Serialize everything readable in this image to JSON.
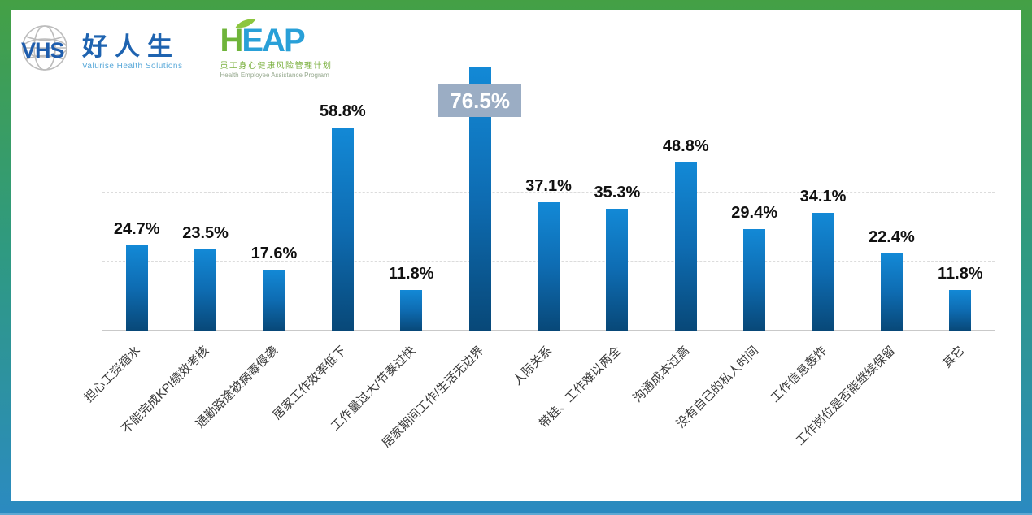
{
  "frame": {
    "gradient_top": "#44a045",
    "gradient_mid": "#2f9a80",
    "gradient_bottom": "#2b8ac1"
  },
  "logos": {
    "vhs": {
      "acronym": "VHS",
      "name_cn": "好人生",
      "tagline": "Valurise Health Solutions",
      "brand_blue": "#1e63b0",
      "light_blue": "#58a8d9"
    },
    "heap": {
      "h": "H",
      "eap": "EAP",
      "subtitle_cn": "员工身心健康风险管理计划",
      "subtitle_en": "Health Employee Assistance Program",
      "green": "#6fb43a",
      "blue": "#29a0d8"
    }
  },
  "chart_data": {
    "type": "bar",
    "title": "",
    "xlabel": "",
    "ylabel": "",
    "categories": [
      "担心工资缩水",
      "不能完成KPI绩效考核",
      "通勤路途被病毒侵袭",
      "居家工作效率低下",
      "工作量过大/节奏过快",
      "居家期间工作/生活无边界",
      "人际关系",
      "带娃、工作难以两全",
      "沟通成本过高",
      "没有自己的私人时间",
      "工作信息轰炸",
      "工作岗位是否能继续保留",
      "其它"
    ],
    "values": [
      24.7,
      23.5,
      17.6,
      58.8,
      11.8,
      76.5,
      37.1,
      35.3,
      48.8,
      29.4,
      34.1,
      22.4,
      11.8
    ],
    "labels": [
      "24.7%",
      "23.5%",
      "17.6%",
      "58.8%",
      "11.8%",
      "76.5%",
      "37.1%",
      "35.3%",
      "48.8%",
      "29.4%",
      "34.1%",
      "22.4%",
      "11.8%"
    ],
    "highlight_index": 5,
    "ylim": [
      0,
      80
    ],
    "gridlines_percent": [
      10,
      20,
      30,
      40,
      50,
      60,
      70,
      80
    ],
    "grid": true,
    "legend": false,
    "bar_color_top": "#1389d6",
    "bar_color_bottom": "#084878",
    "highlight_box_color": "#9badc4",
    "value_label_color": "#111111",
    "axis_label_color": "#3a3a3a"
  }
}
